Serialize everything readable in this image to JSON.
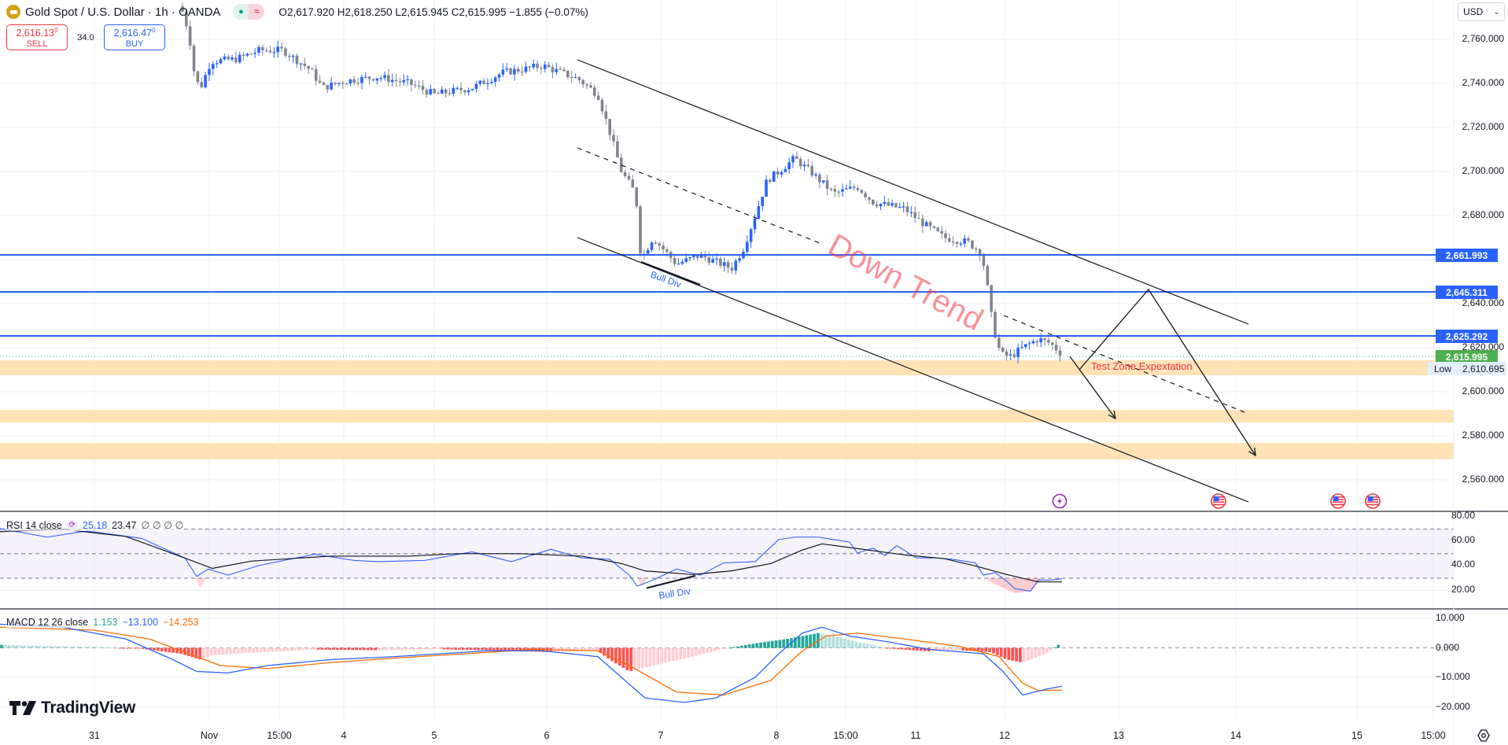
{
  "header": {
    "symbol_title": "Gold Spot / U.S. Dollar · 1h · OANDA",
    "logo_icon": "gold-bar-icon",
    "status_icons": [
      "market-open-dot-icon",
      "delayed-data-icon"
    ],
    "ohlc": {
      "open_label": "O",
      "open": "2,617.920",
      "high_label": "H",
      "high": "2,618.250",
      "low_label": "L",
      "low": "2,615.945",
      "close_label": "C",
      "close": "2,615.995",
      "change": "−1.855 (−0.07%)"
    }
  },
  "trade": {
    "sell_price": "2,616.13",
    "sell_price_sup": "0",
    "sell_label": "SELL",
    "spread": "34.0",
    "buy_price": "2,616.47",
    "buy_price_sup": "0",
    "buy_label": "BUY"
  },
  "currency_select": {
    "value": "USD"
  },
  "price_axis": {
    "labels": [
      "2,760.000",
      "2,740.000",
      "2,720.000",
      "2,700.000",
      "2,680.000",
      "2,640.000",
      "2,620.000",
      "2,600.000",
      "2,580.000",
      "2,560.000"
    ],
    "tags": [
      {
        "value": "2,661.993",
        "color": "#2962ff"
      },
      {
        "value": "2,645.311",
        "color": "#2962ff"
      },
      {
        "value": "2,625.292",
        "color": "#2962ff"
      },
      {
        "value": "2,615.995",
        "color": "#4caf50"
      }
    ],
    "low_label": "Low",
    "low_value": "2,610.695"
  },
  "annotations": {
    "down_trend": "Down Trend",
    "bull_div_price": "Bull Div",
    "bull_div_rsi": "Bull Div",
    "test_zone": "Test  Zone Expextation"
  },
  "event_icons": [
    "earnings-bolt-icon",
    "us-flag-event-icon",
    "us-flag-event-icon",
    "us-flag-event-icon"
  ],
  "rsi": {
    "title": "RSI 14 close",
    "value": "25.18",
    "ma": "23.47",
    "extra": "∅ ∅ ∅ ∅",
    "axis": [
      "80.00",
      "60.00",
      "40.00",
      "20.00"
    ]
  },
  "macd": {
    "title": "MACD 12 26 close",
    "hist": "1.153",
    "macd": "−13.100",
    "signal": "−14.253",
    "axis": [
      "10.000",
      "0.000",
      "−10.000",
      "−20.000"
    ]
  },
  "time_axis": [
    "31",
    "Nov",
    "15:00",
    "4",
    "5",
    "6",
    "7",
    "8",
    "15:00",
    "11",
    "12",
    "13",
    "14",
    "15",
    "15:00"
  ],
  "brand": "TradingView",
  "colors": {
    "bull": "#2962ff",
    "bear": "#808590",
    "level": "#2962ff",
    "zone": "#ffe0b2",
    "rsi_line": "#2962ff",
    "macd_line": "#2962ff",
    "signal_line": "#ff6d00",
    "hist_pos_strong": "#26a69a",
    "hist_pos_weak": "#b2dfdb",
    "hist_neg_strong": "#ff5252",
    "hist_neg_weak": "#ffcdd2",
    "annotation_red": "#f23645"
  },
  "chart_data": {
    "type": "candlestick",
    "title": "Gold Spot / U.S. Dollar · 1h · OANDA",
    "xlabel": "",
    "ylabel": "USD",
    "ylim": [
      2550,
      2770
    ],
    "x_ticks": [
      "31",
      "Nov",
      "15:00",
      "4",
      "5",
      "6",
      "7",
      "8",
      "15:00",
      "11",
      "12",
      "13",
      "14",
      "15",
      "15:00"
    ],
    "approx_close_path": [
      {
        "t": "Oct 31",
        "price": 2780
      },
      {
        "t": "Nov 1 early",
        "price": 2735
      },
      {
        "t": "Nov 1 15:00",
        "price": 2752
      },
      {
        "t": "Nov 4",
        "price": 2737
      },
      {
        "t": "Nov 5",
        "price": 2740
      },
      {
        "t": "Nov 6 open",
        "price": 2748
      },
      {
        "t": "Nov 6 late",
        "price": 2680
      },
      {
        "t": "Nov 7",
        "price": 2658
      },
      {
        "t": "Nov 7 late",
        "price": 2677
      },
      {
        "t": "Nov 8",
        "price": 2710
      },
      {
        "t": "Nov 8 15:00",
        "price": 2688
      },
      {
        "t": "Nov 11",
        "price": 2684
      },
      {
        "t": "Nov 11 late",
        "price": 2660
      },
      {
        "t": "Nov 12",
        "price": 2615
      },
      {
        "t": "Nov 12 last",
        "price": 2615.995
      }
    ],
    "horizontal_levels": [
      2661.993,
      2645.311,
      2625.292
    ],
    "last_price": 2615.995,
    "session_low": 2610.695,
    "supply_demand_zones": [
      [
        2610,
        2617
      ],
      [
        2586,
        2592
      ],
      [
        2570,
        2577
      ]
    ],
    "channel": {
      "upper": [
        {
          "t": "Nov 6",
          "price": 2750
        },
        {
          "t": "Nov 13 late",
          "price": 2641
        }
      ],
      "mid": [
        {
          "t": "Nov 6",
          "price": 2710
        },
        {
          "t": "Nov 8",
          "price": 2677
        }
      ],
      "mid2": [
        {
          "t": "Nov 12",
          "price": 2633
        },
        {
          "t": "Nov 14",
          "price": 2593
        }
      ],
      "lower": [
        {
          "t": "Nov 6",
          "price": 2670
        },
        {
          "t": "Nov 14",
          "price": 2556
        }
      ]
    },
    "projection_paths": [
      [
        {
          "t": "Nov 12 15:00",
          "price": 2618
        },
        {
          "t": "Nov 13",
          "price": 2590
        }
      ],
      [
        {
          "t": "Nov 12 15:00",
          "price": 2610
        },
        {
          "t": "Nov 13 late",
          "price": 2645
        },
        {
          "t": "Nov 14",
          "price": 2573
        }
      ]
    ],
    "rsi": {
      "period": 14,
      "last": 25.18,
      "ma": 23.47,
      "bands": [
        70,
        50,
        30
      ],
      "ylim": [
        10,
        85
      ]
    },
    "macd": {
      "fast": 12,
      "slow": 26,
      "hist": 1.153,
      "macd": -13.1,
      "signal": -14.253,
      "ylim": [
        -22,
        12
      ]
    }
  }
}
